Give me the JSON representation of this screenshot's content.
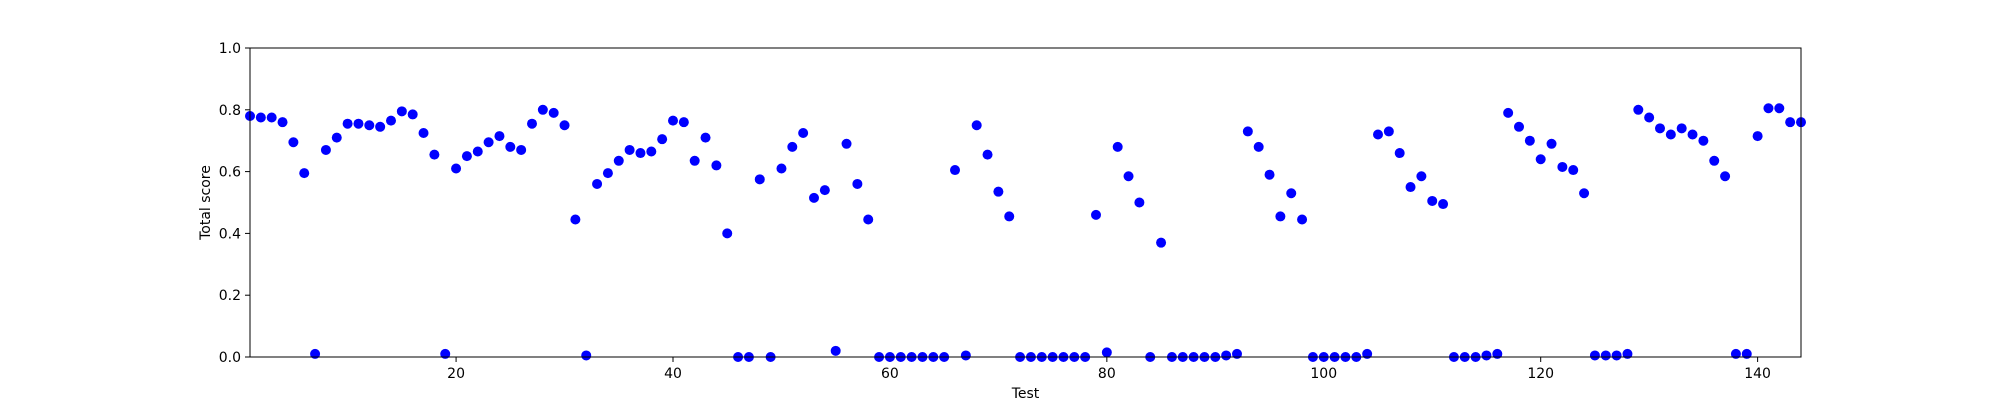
{
  "chart_data": {
    "type": "scatter",
    "title": "",
    "xlabel": "Test",
    "ylabel": "Total score",
    "xlim": [
      1,
      144
    ],
    "ylim": [
      0.0,
      1.0
    ],
    "grid": false,
    "xticks": [
      20,
      40,
      60,
      80,
      100,
      120,
      140
    ],
    "xtick_labels": [
      "20",
      "40",
      "60",
      "80",
      "100",
      "120",
      "140"
    ],
    "yticks": [
      0.0,
      0.2,
      0.4,
      0.6,
      0.8,
      1.0
    ],
    "ytick_labels": [
      "0.0",
      "0.2",
      "0.4",
      "0.6",
      "0.8",
      "1.0"
    ],
    "marker_color": "#0000ff",
    "series": [
      {
        "x": [
          1,
          2,
          3,
          4,
          5,
          6,
          7,
          8,
          9,
          10,
          11,
          12,
          13,
          14,
          15,
          16,
          17,
          18,
          19,
          20,
          21,
          22,
          23,
          24,
          25,
          26,
          27,
          28,
          29,
          30,
          31,
          32,
          33,
          34,
          35,
          36,
          37,
          38,
          39,
          40,
          41,
          42,
          43,
          44,
          45,
          46,
          47,
          48,
          49,
          50,
          51,
          52,
          53,
          54,
          55,
          56,
          57,
          58,
          59,
          60,
          61,
          62,
          63,
          64,
          65,
          66,
          67,
          68,
          69,
          70,
          71,
          72,
          73,
          74,
          75,
          76,
          77,
          78,
          79,
          80,
          81,
          82,
          83,
          84,
          85,
          86,
          87,
          88,
          89,
          90,
          91,
          92,
          93,
          94,
          95,
          96,
          97,
          98,
          99,
          100,
          101,
          102,
          103,
          104,
          105,
          106,
          107,
          108,
          109,
          110,
          111,
          112,
          113,
          114,
          115,
          116,
          117,
          118,
          119,
          120,
          121,
          122,
          123,
          124,
          125,
          126,
          127,
          128,
          129,
          130,
          131,
          132,
          133,
          134,
          135,
          136,
          137,
          138,
          139,
          140,
          141,
          142,
          143,
          144
        ],
        "y": [
          0.78,
          0.775,
          0.775,
          0.76,
          0.695,
          0.595,
          0.01,
          0.67,
          0.71,
          0.755,
          0.755,
          0.75,
          0.745,
          0.765,
          0.795,
          0.785,
          0.725,
          0.655,
          0.01,
          0.61,
          0.65,
          0.665,
          0.695,
          0.715,
          0.68,
          0.67,
          0.755,
          0.8,
          0.79,
          0.75,
          0.445,
          0.005,
          0.56,
          0.595,
          0.635,
          0.67,
          0.66,
          0.665,
          0.705,
          0.765,
          0.76,
          0.635,
          0.71,
          0.62,
          0.4,
          0.0,
          0.0,
          0.575,
          0.0,
          0.61,
          0.68,
          0.725,
          0.515,
          0.54,
          0.02,
          0.69,
          0.56,
          0.445,
          0.0,
          0.0,
          0.0,
          0.0,
          0.0,
          0.0,
          0.0,
          0.605,
          0.005,
          0.75,
          0.655,
          0.535,
          0.455,
          0.0,
          0.0,
          0.0,
          0.0,
          0.0,
          0.0,
          0.0,
          0.46,
          0.015,
          0.68,
          0.585,
          0.5,
          0.0,
          0.37,
          0.0,
          0.0,
          0.0,
          0.0,
          0.0,
          0.005,
          0.01,
          0.73,
          0.68,
          0.59,
          0.455,
          0.53,
          0.445,
          0.0,
          0.0,
          0.0,
          0.0,
          0.0,
          0.01,
          0.72,
          0.73,
          0.66,
          0.55,
          0.585,
          0.505,
          0.495,
          0.0,
          0.0,
          0.0,
          0.005,
          0.01,
          0.79,
          0.745,
          0.7,
          0.64,
          0.69,
          0.615,
          0.605,
          0.53,
          0.005,
          0.005,
          0.005,
          0.01,
          0.8,
          0.775,
          0.74,
          0.72,
          0.74,
          0.72,
          0.7,
          0.635,
          0.585,
          0.01,
          0.01,
          0.715,
          0.805,
          0.805,
          0.76,
          0.76
        ]
      }
    ]
  }
}
